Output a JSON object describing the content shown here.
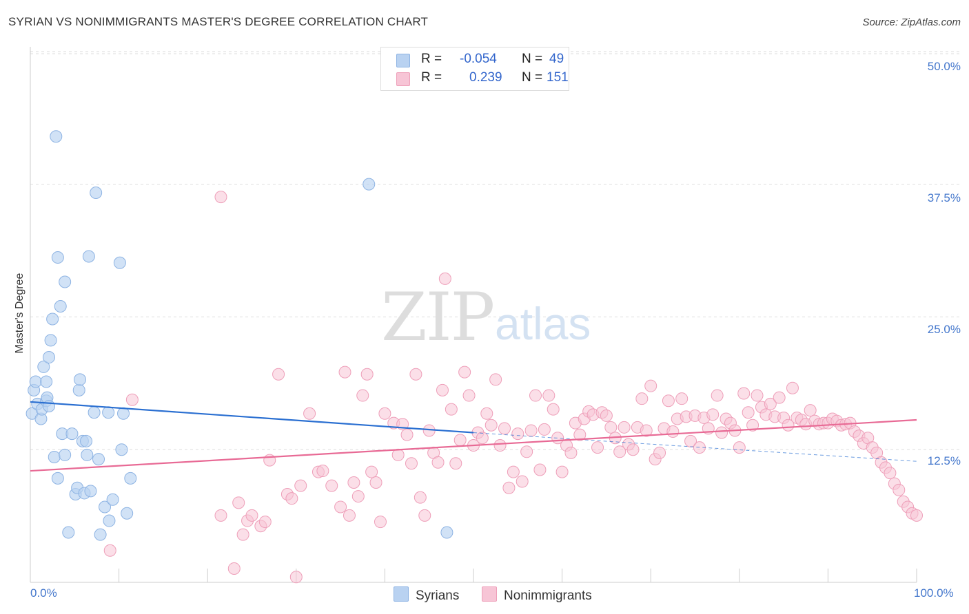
{
  "header": {
    "title": "SYRIAN VS NONIMMIGRANTS MASTER'S DEGREE CORRELATION CHART",
    "source": "Source: ZipAtlas.com"
  },
  "watermark": {
    "zip": "ZIP",
    "atlas": "atlas"
  },
  "legend": {
    "rows": [
      {
        "r_label": "R =",
        "r_value": "-0.054",
        "n_label": "N =",
        "n_value": "49"
      },
      {
        "r_label": "R =",
        "r_value": "0.239",
        "n_label": "N =",
        "n_value": "151"
      }
    ],
    "bottom": [
      "Syrians",
      "Nonimmigrants"
    ]
  },
  "colors": {
    "syrian_fill": "#b9d2f1",
    "syrian_stroke": "#8db3e3",
    "syrian_line": "#2a6fd1",
    "nonimm_fill": "#f7c5d6",
    "nonimm_stroke": "#ee9fb9",
    "nonimm_line": "#e86a95",
    "axis_text": "#4477cc",
    "grid": "#dddddd"
  },
  "chart_data": {
    "type": "scatter",
    "title": "SYRIAN VS NONIMMIGRANTS MASTER'S DEGREE CORRELATION CHART",
    "xlabel": "",
    "ylabel": "Master's Degree",
    "xlim": [
      0,
      100
    ],
    "ylim": [
      0,
      52
    ],
    "x_tick_labels": [
      "0.0%",
      "100.0%"
    ],
    "y_ticks": [
      12.5,
      25.0,
      37.5,
      50.0
    ],
    "y_tick_labels": [
      "12.5%",
      "25.0%",
      "37.5%",
      "50.0%"
    ],
    "series": [
      {
        "name": "Syrians",
        "r": -0.054,
        "n": 49,
        "trend": {
          "x": [
            0,
            50
          ],
          "y": [
            17.0,
            14.1
          ]
        },
        "trend_dashed": {
          "x": [
            50,
            100
          ],
          "y": [
            14.1,
            11.4
          ]
        },
        "points": [
          [
            0.2,
            15.9
          ],
          [
            0.4,
            18.1
          ],
          [
            0.6,
            18.9
          ],
          [
            0.8,
            16.8
          ],
          [
            1.2,
            15.4
          ],
          [
            1.3,
            16.3
          ],
          [
            1.8,
            17.1
          ],
          [
            1.9,
            17.4
          ],
          [
            2.1,
            16.6
          ],
          [
            2.7,
            11.8
          ],
          [
            3.1,
            9.8
          ],
          [
            1.5,
            20.3
          ],
          [
            1.8,
            18.9
          ],
          [
            2.1,
            21.2
          ],
          [
            2.3,
            22.8
          ],
          [
            2.5,
            24.8
          ],
          [
            3.4,
            26.0
          ],
          [
            3.9,
            28.3
          ],
          [
            3.1,
            30.6
          ],
          [
            2.9,
            42.0
          ],
          [
            3.6,
            14.0
          ],
          [
            3.9,
            12.0
          ],
          [
            4.3,
            4.7
          ],
          [
            4.7,
            14.0
          ],
          [
            5.1,
            8.3
          ],
          [
            5.3,
            8.9
          ],
          [
            5.5,
            18.1
          ],
          [
            5.6,
            19.1
          ],
          [
            5.9,
            13.3
          ],
          [
            6.1,
            8.4
          ],
          [
            6.3,
            13.3
          ],
          [
            6.4,
            12.0
          ],
          [
            6.8,
            8.6
          ],
          [
            7.2,
            16.0
          ],
          [
            7.4,
            36.7
          ],
          [
            7.7,
            11.6
          ],
          [
            7.9,
            4.5
          ],
          [
            8.4,
            7.1
          ],
          [
            8.9,
            5.8
          ],
          [
            9.3,
            7.8
          ],
          [
            10.1,
            30.1
          ],
          [
            10.3,
            12.5
          ],
          [
            10.5,
            15.9
          ],
          [
            10.9,
            6.5
          ],
          [
            11.3,
            9.8
          ],
          [
            8.8,
            16.0
          ],
          [
            6.6,
            30.7
          ],
          [
            38.2,
            37.5
          ],
          [
            47.0,
            4.7
          ]
        ]
      },
      {
        "name": "Nonimmigrants",
        "r": 0.239,
        "n": 151,
        "trend": {
          "x": [
            0,
            100
          ],
          "y": [
            10.5,
            15.3
          ]
        },
        "points": [
          [
            21.5,
            36.3
          ],
          [
            11.5,
            17.2
          ],
          [
            9.0,
            3.0
          ],
          [
            21.5,
            6.3
          ],
          [
            23.0,
            1.3
          ],
          [
            23.5,
            7.5
          ],
          [
            24.0,
            4.5
          ],
          [
            24.5,
            5.8
          ],
          [
            25.0,
            6.3
          ],
          [
            26.0,
            5.3
          ],
          [
            26.5,
            5.7
          ],
          [
            27.0,
            11.5
          ],
          [
            28.0,
            19.6
          ],
          [
            29.0,
            8.3
          ],
          [
            29.5,
            7.9
          ],
          [
            30.0,
            0.5
          ],
          [
            30.5,
            9.1
          ],
          [
            31.5,
            15.9
          ],
          [
            32.5,
            10.4
          ],
          [
            33.0,
            10.5
          ],
          [
            34.0,
            9.1
          ],
          [
            35.0,
            7.1
          ],
          [
            35.5,
            19.8
          ],
          [
            36.0,
            6.3
          ],
          [
            36.5,
            9.4
          ],
          [
            37.0,
            8.1
          ],
          [
            37.5,
            17.6
          ],
          [
            38.0,
            19.6
          ],
          [
            38.5,
            10.4
          ],
          [
            39.0,
            9.4
          ],
          [
            39.5,
            5.7
          ],
          [
            40.0,
            15.9
          ],
          [
            41.0,
            15.0
          ],
          [
            41.5,
            12.0
          ],
          [
            42.0,
            14.9
          ],
          [
            42.5,
            13.9
          ],
          [
            43.0,
            11.2
          ],
          [
            43.5,
            19.6
          ],
          [
            44.0,
            8.0
          ],
          [
            44.5,
            6.3
          ],
          [
            45.0,
            14.3
          ],
          [
            45.5,
            12.2
          ],
          [
            46.0,
            11.3
          ],
          [
            46.5,
            18.1
          ],
          [
            46.8,
            28.6
          ],
          [
            47.5,
            16.3
          ],
          [
            48.0,
            11.2
          ],
          [
            48.5,
            13.4
          ],
          [
            49.0,
            19.8
          ],
          [
            49.5,
            17.6
          ],
          [
            50.0,
            12.9
          ],
          [
            50.5,
            14.1
          ],
          [
            51.0,
            13.6
          ],
          [
            51.5,
            15.9
          ],
          [
            52.0,
            14.8
          ],
          [
            52.5,
            19.1
          ],
          [
            53.0,
            12.9
          ],
          [
            53.5,
            14.5
          ],
          [
            54.0,
            8.9
          ],
          [
            54.5,
            10.4
          ],
          [
            55.0,
            14.0
          ],
          [
            55.5,
            9.5
          ],
          [
            56.0,
            12.3
          ],
          [
            56.5,
            14.3
          ],
          [
            57.0,
            17.6
          ],
          [
            57.5,
            10.6
          ],
          [
            58.0,
            14.4
          ],
          [
            58.5,
            17.6
          ],
          [
            59.0,
            16.3
          ],
          [
            59.5,
            13.6
          ],
          [
            60.0,
            10.4
          ],
          [
            60.5,
            12.9
          ],
          [
            61.0,
            12.2
          ],
          [
            61.5,
            15.0
          ],
          [
            62.0,
            13.9
          ],
          [
            62.5,
            15.4
          ],
          [
            63.0,
            16.1
          ],
          [
            63.5,
            15.8
          ],
          [
            64.0,
            12.7
          ],
          [
            64.5,
            16.0
          ],
          [
            65.0,
            15.7
          ],
          [
            65.5,
            14.6
          ],
          [
            66.0,
            13.6
          ],
          [
            66.5,
            12.3
          ],
          [
            67.0,
            14.6
          ],
          [
            67.5,
            13.0
          ],
          [
            68.0,
            12.5
          ],
          [
            68.5,
            14.6
          ],
          [
            69.0,
            17.3
          ],
          [
            69.5,
            14.3
          ],
          [
            70.0,
            18.5
          ],
          [
            70.5,
            11.6
          ],
          [
            71.0,
            12.2
          ],
          [
            71.5,
            14.5
          ],
          [
            72.0,
            17.1
          ],
          [
            72.5,
            14.2
          ],
          [
            73.0,
            15.4
          ],
          [
            73.5,
            17.3
          ],
          [
            74.0,
            15.6
          ],
          [
            74.5,
            13.3
          ],
          [
            75.0,
            15.7
          ],
          [
            75.5,
            12.7
          ],
          [
            76.0,
            15.5
          ],
          [
            76.5,
            14.5
          ],
          [
            77.0,
            15.8
          ],
          [
            77.5,
            17.6
          ],
          [
            78.0,
            14.1
          ],
          [
            78.5,
            15.4
          ],
          [
            79.0,
            15.0
          ],
          [
            79.5,
            14.3
          ],
          [
            80.0,
            12.7
          ],
          [
            80.5,
            17.8
          ],
          [
            81.0,
            16.0
          ],
          [
            81.5,
            14.8
          ],
          [
            82.0,
            17.6
          ],
          [
            82.5,
            16.5
          ],
          [
            83.0,
            15.8
          ],
          [
            83.5,
            16.8
          ],
          [
            84.0,
            15.6
          ],
          [
            84.5,
            17.4
          ],
          [
            85.0,
            15.5
          ],
          [
            85.5,
            14.8
          ],
          [
            86.0,
            18.3
          ],
          [
            86.5,
            15.5
          ],
          [
            87.0,
            15.3
          ],
          [
            87.5,
            14.9
          ],
          [
            88.0,
            16.2
          ],
          [
            88.5,
            15.2
          ],
          [
            89.0,
            14.9
          ],
          [
            89.5,
            15.0
          ],
          [
            90.0,
            15.0
          ],
          [
            90.5,
            15.4
          ],
          [
            91.0,
            15.2
          ],
          [
            91.5,
            14.8
          ],
          [
            92.0,
            14.9
          ],
          [
            92.5,
            15.0
          ],
          [
            93.0,
            14.2
          ],
          [
            93.5,
            13.8
          ],
          [
            94.0,
            13.1
          ],
          [
            94.5,
            13.6
          ],
          [
            95.0,
            12.7
          ],
          [
            95.5,
            12.2
          ],
          [
            96.0,
            11.3
          ],
          [
            96.5,
            10.8
          ],
          [
            97.0,
            10.3
          ],
          [
            97.5,
            9.3
          ],
          [
            98.0,
            8.7
          ],
          [
            98.5,
            7.6
          ],
          [
            99.0,
            7.1
          ],
          [
            99.5,
            6.5
          ],
          [
            100.0,
            6.3
          ]
        ]
      }
    ]
  }
}
